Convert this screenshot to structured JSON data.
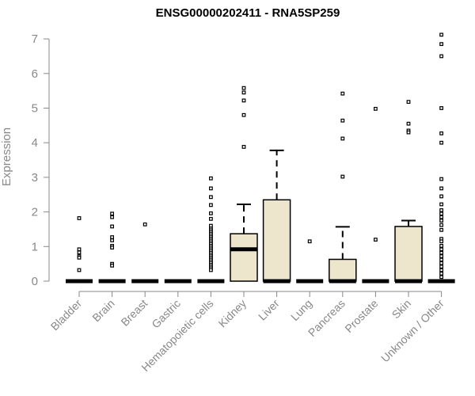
{
  "chart_data": {
    "type": "box",
    "title": "ENSG00000202411 - RNA5SP259",
    "xlabel": "",
    "ylabel": "Expression",
    "ylim": [
      0,
      7.1
    ],
    "yticks": [
      0,
      1,
      2,
      3,
      4,
      5,
      6,
      7
    ],
    "box_fill": "#ede6cd",
    "categories": [
      {
        "name": "Bladder",
        "q1": 0,
        "median": 0,
        "q3": 0,
        "whisker_low": 0,
        "whisker_high": 0,
        "outliers": [
          1.82,
          0.92,
          0.83,
          0.72,
          0.68,
          0.32
        ]
      },
      {
        "name": "Brain",
        "q1": 0,
        "median": 0,
        "q3": 0,
        "whisker_low": 0,
        "whisker_high": 0,
        "outliers": [
          1.95,
          1.85,
          1.58,
          1.27,
          1.18,
          1.02,
          0.97,
          0.5,
          0.45
        ]
      },
      {
        "name": "Breast",
        "q1": 0,
        "median": 0,
        "q3": 0,
        "whisker_low": 0,
        "whisker_high": 0,
        "outliers": [
          1.64
        ]
      },
      {
        "name": "Gastric",
        "q1": 0,
        "median": 0,
        "q3": 0,
        "whisker_low": 0,
        "whisker_high": 0,
        "outliers": []
      },
      {
        "name": "Hematopoietic cells",
        "q1": 0,
        "median": 0,
        "q3": 0,
        "whisker_low": 0,
        "whisker_high": 0,
        "outliers": [
          2.97,
          2.68,
          2.43,
          2.2,
          1.96,
          1.8,
          1.6,
          1.52,
          1.47,
          1.42,
          1.37,
          1.32,
          1.27,
          1.22,
          1.17,
          1.12,
          1.07,
          1.02,
          0.97,
          0.92,
          0.87,
          0.82,
          0.77,
          0.72,
          0.67,
          0.62,
          0.57,
          0.52,
          0.47,
          0.42,
          0.37,
          0.32
        ]
      },
      {
        "name": "Kidney",
        "q1": 0,
        "median": 0.92,
        "q3": 1.37,
        "whisker_low": 0,
        "whisker_high": 2.22,
        "outliers": [
          5.58,
          5.45,
          5.22,
          4.8,
          3.88
        ]
      },
      {
        "name": "Liver",
        "q1": 0,
        "median": 0,
        "q3": 2.35,
        "whisker_low": 0,
        "whisker_high": 3.78,
        "outliers": []
      },
      {
        "name": "Lung",
        "q1": 0,
        "median": 0,
        "q3": 0,
        "whisker_low": 0,
        "whisker_high": 0,
        "outliers": [
          1.15
        ]
      },
      {
        "name": "Pancreas",
        "q1": 0,
        "median": 0,
        "q3": 0.63,
        "whisker_low": 0,
        "whisker_high": 1.57,
        "outliers": [
          5.42,
          4.64,
          4.12,
          3.02
        ]
      },
      {
        "name": "Prostate",
        "q1": 0,
        "median": 0,
        "q3": 0,
        "whisker_low": 0,
        "whisker_high": 0,
        "outliers": [
          4.98,
          1.2
        ]
      },
      {
        "name": "Skin",
        "q1": 0,
        "median": 0,
        "q3": 1.58,
        "whisker_low": 0,
        "whisker_high": 1.75,
        "outliers": [
          5.18,
          4.55,
          4.35,
          4.3
        ]
      },
      {
        "name": "Unknown / Other",
        "q1": 0,
        "median": 0,
        "q3": 0,
        "whisker_low": 0,
        "whisker_high": 0,
        "outliers": [
          7.12,
          6.85,
          6.5,
          5.0,
          4.27,
          4.0,
          2.95,
          2.68,
          2.45,
          2.22,
          2.05,
          1.95,
          1.85,
          1.75,
          1.62,
          1.48,
          1.22,
          1.15,
          1.02,
          0.92,
          0.82,
          0.72,
          0.62,
          0.52,
          0.42,
          0.32,
          0.22,
          0.12
        ]
      }
    ]
  }
}
